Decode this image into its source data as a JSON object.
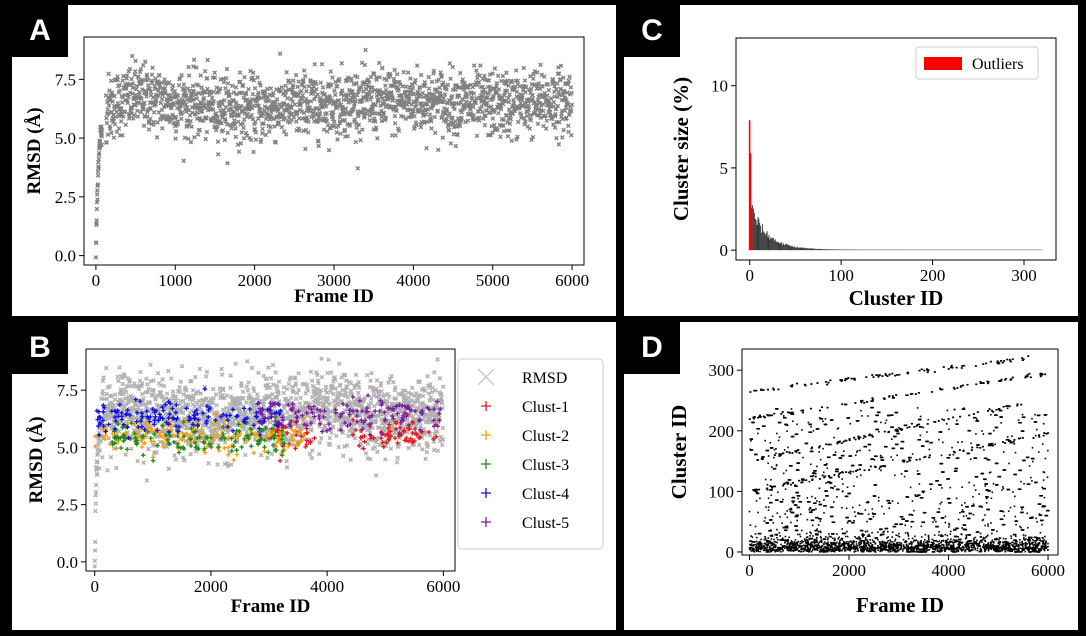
{
  "panels": [
    {
      "id": "A",
      "label": "A"
    },
    {
      "id": "B",
      "label": "B"
    },
    {
      "id": "C",
      "label": "C"
    },
    {
      "id": "D",
      "label": "D"
    }
  ],
  "chart_data": [
    {
      "panel": "A",
      "type": "scatter",
      "xlabel": "Frame ID",
      "ylabel": "RMSD (Å)",
      "xlim": [
        -150,
        6150
      ],
      "ylim": [
        -0.4,
        9.3
      ],
      "xticks": [
        0,
        1000,
        2000,
        3000,
        4000,
        5000,
        6000
      ],
      "yticks": [
        0.0,
        2.5,
        5.0,
        7.5
      ],
      "ytick_labels": [
        "0.0",
        "2.5",
        "5.0",
        "7.5"
      ],
      "series": [
        {
          "color": "#808080",
          "marker": "x",
          "trend": [
            [
              0,
              0.0
            ],
            [
              15,
              2.4
            ],
            [
              30,
              3.9
            ],
            [
              60,
              5.2
            ],
            [
              150,
              6.3
            ],
            [
              500,
              6.8
            ],
            [
              1000,
              6.5
            ],
            [
              2000,
              6.2
            ],
            [
              3000,
              6.5
            ],
            [
              4000,
              6.6
            ],
            [
              5000,
              6.4
            ],
            [
              6000,
              6.6
            ]
          ],
          "spread": 0.7
        }
      ]
    },
    {
      "panel": "B",
      "type": "scatter",
      "xlabel": "Frame ID",
      "ylabel": "RMSD (Å)",
      "xlim": [
        -150,
        6200
      ],
      "ylim": [
        -0.4,
        9.3
      ],
      "xticks": [
        0,
        2000,
        4000,
        6000
      ],
      "yticks": [
        0.0,
        2.5,
        5.0,
        7.5
      ],
      "ytick_labels": [
        "0.0",
        "2.5",
        "5.0",
        "7.5"
      ],
      "legend": {
        "position": "right",
        "entries": [
          "RMSD",
          "Clust-1",
          "Clust-2",
          "Clust-3",
          "Clust-4",
          "Clust-5"
        ]
      },
      "series": [
        {
          "name": "RMSD",
          "color": "#b0b0b0",
          "marker": "x",
          "spread": 0.8
        },
        {
          "name": "Clust-1",
          "color": "#e31a1c",
          "marker": "+",
          "y_center": 5.6,
          "x_ranges": [
            [
              3000,
              3800
            ],
            [
              4400,
              5900
            ]
          ]
        },
        {
          "name": "Clust-2",
          "color": "#ff9f00",
          "marker": "+",
          "y_center": 5.5,
          "x_ranges": [
            [
              0,
              3600
            ]
          ]
        },
        {
          "name": "Clust-3",
          "color": "#1f8a1f",
          "marker": "+",
          "y_center": 5.4,
          "x_ranges": [
            [
              300,
              3300
            ]
          ]
        },
        {
          "name": "Clust-4",
          "color": "#1010e0",
          "marker": "+",
          "y_center": 6.3,
          "x_ranges": [
            [
              0,
              3200
            ]
          ]
        },
        {
          "name": "Clust-5",
          "color": "#7b1fa2",
          "marker": "+",
          "y_center": 6.4,
          "x_ranges": [
            [
              2800,
              6000
            ]
          ]
        }
      ]
    },
    {
      "panel": "C",
      "type": "bar",
      "xlabel": "Cluster ID",
      "ylabel": "Cluster size (%)",
      "xlim": [
        -15,
        335
      ],
      "ylim": [
        -0.6,
        12.9
      ],
      "xticks": [
        0,
        100,
        200,
        300
      ],
      "yticks": [
        0,
        5,
        10
      ],
      "legend": {
        "position": "top-right",
        "entries": [
          "Outliers"
        ]
      },
      "outliers": {
        "name": "Outliers",
        "color": "#ff0000",
        "values": [
          7.9,
          5.9,
          2.6
        ]
      },
      "clusters": {
        "color": "#222222",
        "count": 320,
        "peak": 2.3,
        "decay": 18
      }
    },
    {
      "panel": "D",
      "type": "scatter",
      "xlabel": "Frame ID",
      "ylabel": "Cluster ID",
      "xlim": [
        -150,
        6200
      ],
      "ylim": [
        -5,
        335
      ],
      "xticks": [
        0,
        2000,
        4000,
        6000
      ],
      "yticks": [
        0,
        100,
        200,
        300
      ],
      "series": [
        {
          "color": "#000000",
          "marker": "dot",
          "diagonals": [
            [
              0,
              265,
              5600,
              320
            ],
            [
              0,
              220,
              6000,
              295
            ],
            [
              0,
              150,
              5500,
              245
            ],
            [
              0,
              100,
              6000,
              195
            ]
          ]
        }
      ]
    }
  ]
}
